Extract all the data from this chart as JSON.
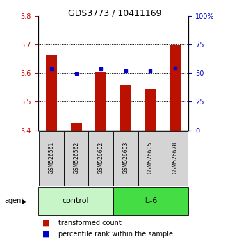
{
  "title": "GDS3773 / 10411169",
  "samples": [
    "GSM526561",
    "GSM526562",
    "GSM526602",
    "GSM526603",
    "GSM526605",
    "GSM526678"
  ],
  "red_values": [
    5.665,
    5.425,
    5.605,
    5.558,
    5.545,
    5.698
  ],
  "blue_values": [
    5.615,
    5.598,
    5.615,
    5.607,
    5.607,
    5.617
  ],
  "ylim_left": [
    5.4,
    5.8
  ],
  "ylim_right": [
    0,
    100
  ],
  "yticks_left": [
    5.4,
    5.5,
    5.6,
    5.7,
    5.8
  ],
  "ytick_right_labels": [
    "0",
    "25",
    "50",
    "75",
    "100%"
  ],
  "hlines": [
    5.5,
    5.6,
    5.7
  ],
  "bar_bottom": 5.4,
  "groups": [
    {
      "label": "control",
      "color_light": "#c8f5c8",
      "color_dark": "#44dd44"
    },
    {
      "label": "IL-6",
      "color_light": "#44dd44",
      "color_dark": "#44dd44"
    }
  ],
  "bar_color": "#bb1100",
  "dot_color": "#0000cc",
  "bar_width": 0.45,
  "title_fontsize": 9,
  "tick_fontsize": 7,
  "sample_fontsize": 5.5,
  "group_fontsize": 8,
  "legend_fontsize": 7,
  "left_axis_color": "#cc0000",
  "right_axis_color": "#0000cc",
  "control_color": "#c8f5c8",
  "il6_color": "#44dd44"
}
